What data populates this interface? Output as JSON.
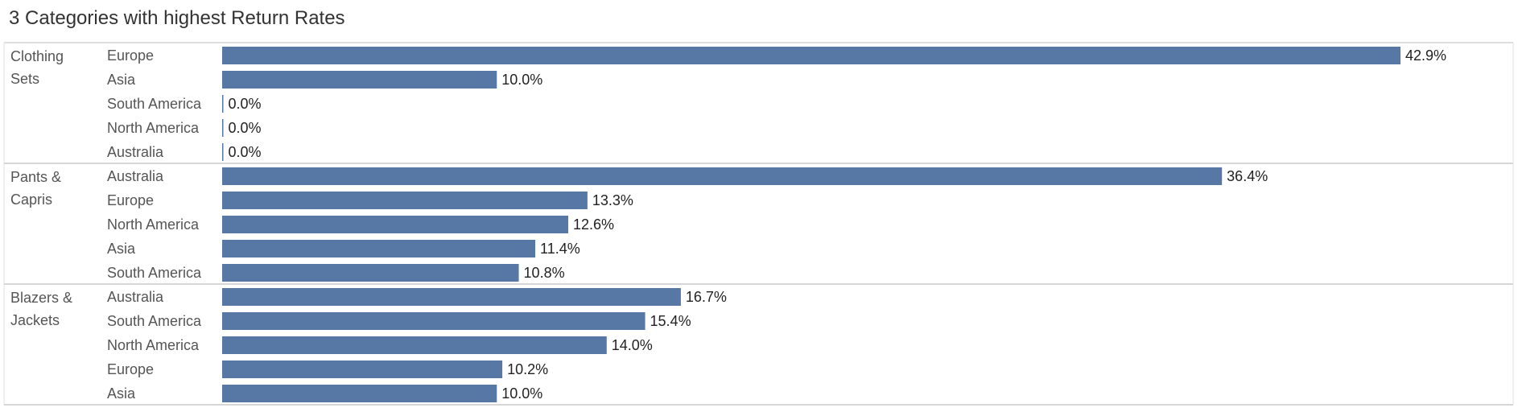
{
  "chart_data": {
    "type": "bar",
    "orientation": "horizontal",
    "title": "3 Categories with highest Return Rates",
    "bar_color": "#5778a4",
    "value_suffix": "%",
    "xlim": [
      0,
      45
    ],
    "groups": [
      {
        "label_lines": [
          "Clothing",
          "Sets"
        ],
        "bars": [
          {
            "category": "Europe",
            "value": 42.9,
            "label": "42.9%"
          },
          {
            "category": "Asia",
            "value": 10.0,
            "label": "10.0%"
          },
          {
            "category": "South America",
            "value": 0.0,
            "label": "0.0%"
          },
          {
            "category": "North America",
            "value": 0.0,
            "label": "0.0%"
          },
          {
            "category": "Australia",
            "value": 0.0,
            "label": "0.0%"
          }
        ]
      },
      {
        "label_lines": [
          "Pants &",
          "Capris"
        ],
        "bars": [
          {
            "category": "Australia",
            "value": 36.4,
            "label": "36.4%"
          },
          {
            "category": "Europe",
            "value": 13.3,
            "label": "13.3%"
          },
          {
            "category": "North America",
            "value": 12.6,
            "label": "12.6%"
          },
          {
            "category": "Asia",
            "value": 11.4,
            "label": "11.4%"
          },
          {
            "category": "South America",
            "value": 10.8,
            "label": "10.8%"
          }
        ]
      },
      {
        "label_lines": [
          "Blazers &",
          "Jackets"
        ],
        "bars": [
          {
            "category": "Australia",
            "value": 16.7,
            "label": "16.7%"
          },
          {
            "category": "South America",
            "value": 15.4,
            "label": "15.4%"
          },
          {
            "category": "North America",
            "value": 14.0,
            "label": "14.0%"
          },
          {
            "category": "Europe",
            "value": 10.2,
            "label": "10.2%"
          },
          {
            "category": "Asia",
            "value": 10.0,
            "label": "10.0%"
          }
        ]
      }
    ]
  }
}
